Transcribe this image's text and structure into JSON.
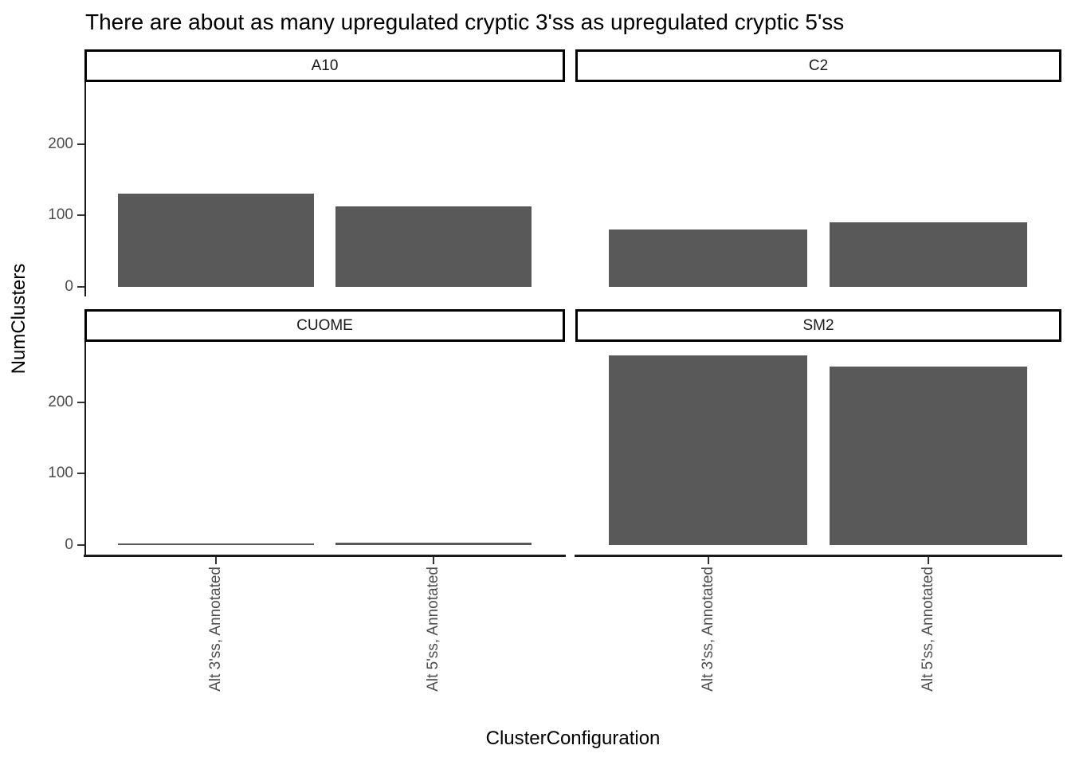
{
  "chart_data": {
    "type": "bar",
    "title": "There are about as many upregulated cryptic 3'ss as upregulated cryptic 5'ss",
    "xlabel": "ClusterConfiguration",
    "ylabel": "NumClusters",
    "categories": [
      "Alt 3'ss, Annotated",
      "Alt 5'ss, Annotated"
    ],
    "facets": [
      {
        "label": "A10",
        "values": [
          130,
          113
        ]
      },
      {
        "label": "C2",
        "values": [
          80,
          90
        ]
      },
      {
        "label": "CUOME",
        "values": [
          2,
          3
        ]
      },
      {
        "label": "SM2",
        "values": [
          265,
          250
        ]
      }
    ],
    "y_ticks": [
      0,
      100,
      200
    ],
    "ylim": [
      -13,
      280
    ],
    "grid": false,
    "legend": "none",
    "facet_layout": "2x2, fixed scales, y axis on left column only, x axis on bottom row only, x tick labels rotated 90 degrees",
    "colors": {
      "bar_fill": "#595959",
      "axis_text": "#4d4d4d",
      "axis_line": "#1a1a1a",
      "strip_border": "#000000",
      "background": "#ffffff",
      "title_text": "#000000"
    }
  }
}
